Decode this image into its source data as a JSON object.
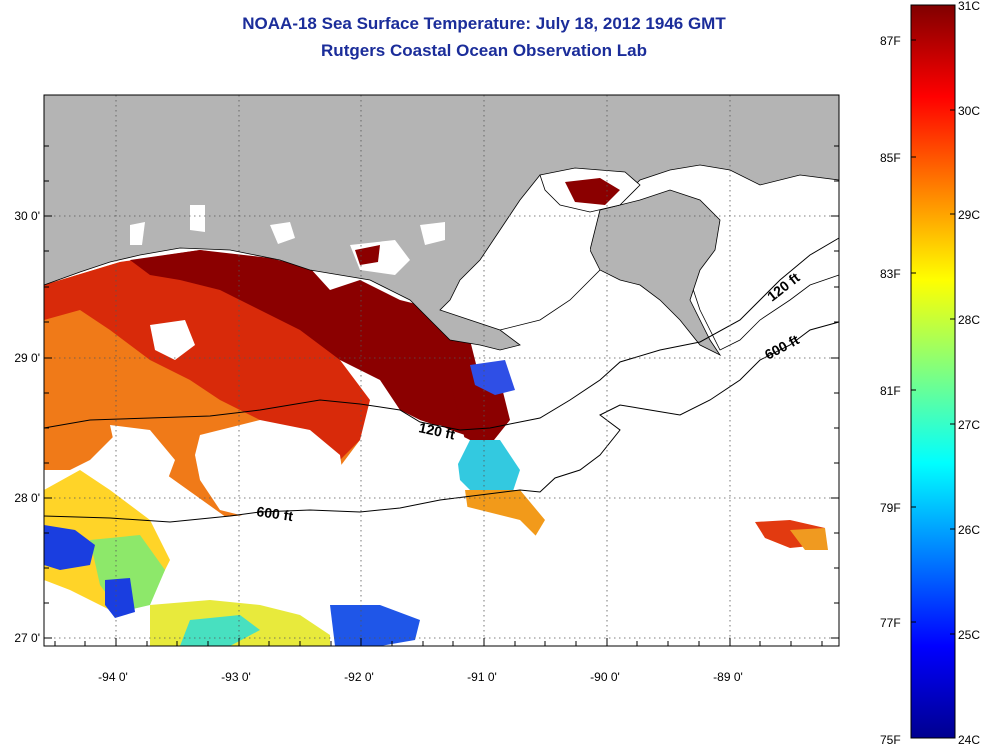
{
  "title": {
    "line1": "NOAA-18 Sea Surface Temperature:  July 18, 2012 1946 GMT",
    "line2": "Rutgers Coastal Ocean Observation Lab"
  },
  "map": {
    "lat_ticks": [
      {
        "value": 30,
        "label": "30 0'"
      },
      {
        "value": 29,
        "label": "29 0'"
      },
      {
        "value": 28,
        "label": "28 0'"
      },
      {
        "value": 27,
        "label": "27 0'"
      }
    ],
    "lon_ticks": [
      {
        "value": -94,
        "label": "-94 0'"
      },
      {
        "value": -93,
        "label": "-93 0'"
      },
      {
        "value": -92,
        "label": "-92 0'"
      },
      {
        "value": -91,
        "label": "-91 0'"
      },
      {
        "value": -90,
        "label": "-90 0'"
      },
      {
        "value": -89,
        "label": "-89 0'"
      }
    ],
    "isobath_labels": [
      {
        "text": "120 ft"
      },
      {
        "text": "600 ft"
      },
      {
        "text": "120 ft"
      },
      {
        "text": "600 ft"
      }
    ],
    "colors": {
      "land": "#b4b4b4",
      "no_data": "#ffffff",
      "frame": "#000000",
      "title": "#1b2d9a"
    }
  },
  "colorbar": {
    "celsius_labels": [
      "31C",
      "30C",
      "29C",
      "28C",
      "27C",
      "26C",
      "25C",
      "24C"
    ],
    "fahrenheit_labels": [
      "87F",
      "85F",
      "83F",
      "81F",
      "79F",
      "77F",
      "75F"
    ],
    "celsius_range": [
      24,
      31
    ],
    "colormap": "jet"
  }
}
